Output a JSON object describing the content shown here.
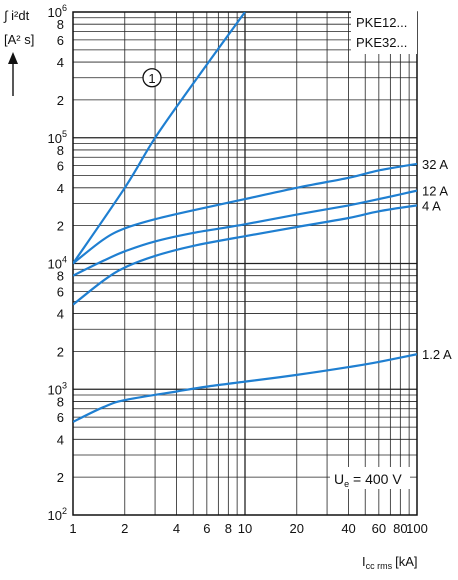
{
  "chart_data": {
    "type": "line",
    "title": "",
    "y_axis": {
      "scale": "log",
      "range": [
        100,
        1000000
      ],
      "label_top": "∫ i²dt",
      "unit": "[A² s]",
      "ticks": [
        {
          "v": 100,
          "b": "10",
          "e": "2"
        },
        {
          "v": 200,
          "t": "2"
        },
        {
          "v": 400,
          "t": "4"
        },
        {
          "v": 600,
          "t": "6"
        },
        {
          "v": 800,
          "t": "8"
        },
        {
          "v": 1000,
          "b": "10",
          "e": "3"
        },
        {
          "v": 2000,
          "t": "2"
        },
        {
          "v": 4000,
          "t": "4"
        },
        {
          "v": 6000,
          "t": "6"
        },
        {
          "v": 8000,
          "t": "8"
        },
        {
          "v": 10000,
          "b": "10",
          "e": "4"
        },
        {
          "v": 20000,
          "t": "2"
        },
        {
          "v": 40000,
          "t": "4"
        },
        {
          "v": 60000,
          "t": "6"
        },
        {
          "v": 80000,
          "t": "8"
        },
        {
          "v": 100000,
          "b": "10",
          "e": "5"
        },
        {
          "v": 200000,
          "t": "2"
        },
        {
          "v": 400000,
          "t": "4"
        },
        {
          "v": 600000,
          "t": "6"
        },
        {
          "v": 800000,
          "t": "8"
        },
        {
          "v": 1000000,
          "b": "10",
          "e": "6"
        }
      ]
    },
    "x_axis": {
      "scale": "log",
      "range": [
        1,
        100
      ],
      "label_main": "I",
      "label_sub": "cc rms",
      "label_unit": "[kA]",
      "ticks": [
        {
          "v": 1,
          "t": "1"
        },
        {
          "v": 2,
          "t": "2"
        },
        {
          "v": 4,
          "t": "4"
        },
        {
          "v": 6,
          "t": "6"
        },
        {
          "v": 8,
          "t": "8"
        },
        {
          "v": 10,
          "t": "10"
        },
        {
          "v": 20,
          "t": "20"
        },
        {
          "v": 40,
          "t": "40"
        },
        {
          "v": 60,
          "t": "60"
        },
        {
          "v": 80,
          "t": "80"
        },
        {
          "v": 100,
          "t": "100"
        }
      ]
    },
    "grid": true,
    "series": [
      {
        "name": "1",
        "label_style": "circled",
        "color": "#1f7fd1",
        "points": [
          [
            1,
            10000
          ],
          [
            2,
            40000
          ],
          [
            3,
            100000
          ],
          [
            5,
            270000
          ],
          [
            10,
            1000000
          ]
        ]
      },
      {
        "name": "32 A",
        "color": "#1f7fd1",
        "points": [
          [
            1,
            10000
          ],
          [
            1.5,
            15500
          ],
          [
            2,
            19000
          ],
          [
            3,
            22500
          ],
          [
            5,
            26500
          ],
          [
            10,
            32500
          ],
          [
            20,
            40000
          ],
          [
            40,
            48000
          ],
          [
            60,
            55000
          ],
          [
            100,
            62000
          ]
        ]
      },
      {
        "name": "12 A",
        "color": "#1f7fd1",
        "points": [
          [
            1,
            8000
          ],
          [
            1.5,
            10500
          ],
          [
            2,
            12500
          ],
          [
            3,
            15000
          ],
          [
            5,
            17500
          ],
          [
            10,
            20500
          ],
          [
            20,
            24500
          ],
          [
            40,
            29000
          ],
          [
            60,
            32500
          ],
          [
            100,
            38000
          ]
        ]
      },
      {
        "name": "4 A",
        "color": "#1f7fd1",
        "points": [
          [
            1,
            4700
          ],
          [
            1.5,
            7300
          ],
          [
            2,
            9300
          ],
          [
            3,
            11500
          ],
          [
            5,
            13800
          ],
          [
            10,
            16500
          ],
          [
            20,
            19500
          ],
          [
            40,
            23000
          ],
          [
            60,
            26000
          ],
          [
            100,
            29000
          ]
        ]
      },
      {
        "name": "1.2 A",
        "color": "#1f7fd1",
        "points": [
          [
            1,
            550
          ],
          [
            1.5,
            720
          ],
          [
            2,
            820
          ],
          [
            4,
            960
          ],
          [
            6,
            1050
          ],
          [
            10,
            1150
          ],
          [
            20,
            1300
          ],
          [
            40,
            1500
          ],
          [
            60,
            1650
          ],
          [
            100,
            1900
          ]
        ]
      }
    ],
    "legend_box": {
      "lines": [
        "PKE12...",
        "PKE32..."
      ]
    },
    "voltage_note": {
      "main": "U",
      "sub": "e",
      "rest": " = 400 V"
    }
  }
}
